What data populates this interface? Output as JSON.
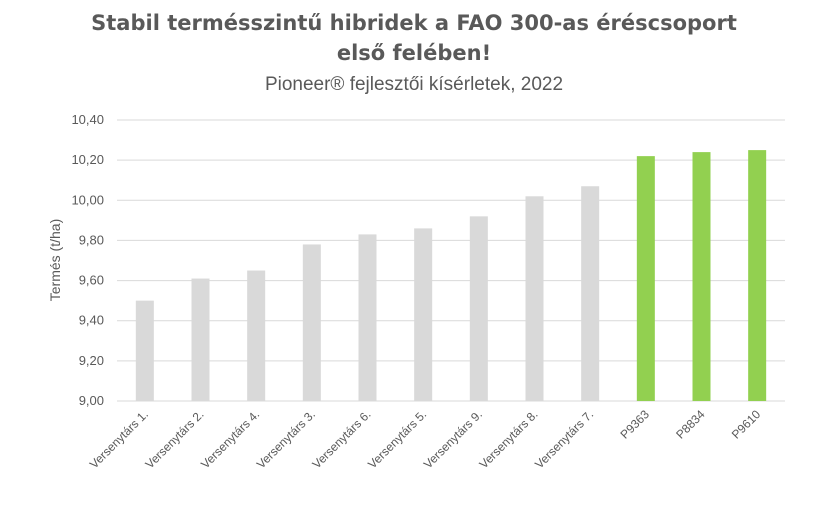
{
  "chart_data": {
    "type": "bar",
    "title_line1": "Stabil termésszintű hibridek a FAO 300-as éréscsoport",
    "title_line2": "első felében!",
    "subtitle": "Pioneer® fejlesztői kísérletek, 2022",
    "xlabel": "",
    "ylabel": "Termés (t/ha)",
    "ylim": [
      9.0,
      10.4
    ],
    "yticks": [
      "9,00",
      "9,20",
      "9,40",
      "9,60",
      "9,80",
      "10,00",
      "10,20",
      "10,40"
    ],
    "grid": true,
    "legend": "none",
    "categories": [
      "Versenytárs 1.",
      "Versenytárs 2.",
      "Versenytárs 4.",
      "Versenytárs 3.",
      "Versenytárs 6.",
      "Versenytárs 5.",
      "Versenytárs 9.",
      "Versenytárs 8.",
      "Versenytárs 7.",
      "P9363",
      "P8834",
      "P9610"
    ],
    "values": [
      9.5,
      9.61,
      9.65,
      9.78,
      9.83,
      9.86,
      9.92,
      10.02,
      10.07,
      10.22,
      10.24,
      10.25
    ],
    "highlight": [
      false,
      false,
      false,
      false,
      false,
      false,
      false,
      false,
      false,
      true,
      true,
      true
    ],
    "colors": {
      "competitor": "#d9d9d9",
      "pioneer": "#92d050",
      "grid": "#d9d9d9",
      "text": "#595959"
    }
  }
}
